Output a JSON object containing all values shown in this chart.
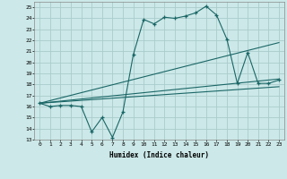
{
  "xlabel": "Humidex (Indice chaleur)",
  "bg_color": "#cce8e8",
  "grid_color": "#aacccc",
  "line_color": "#1a6666",
  "xlim": [
    -0.5,
    23.5
  ],
  "ylim": [
    13,
    25.5
  ],
  "yticks": [
    13,
    14,
    15,
    16,
    17,
    18,
    19,
    20,
    21,
    22,
    23,
    24,
    25
  ],
  "xticks": [
    0,
    1,
    2,
    3,
    4,
    5,
    6,
    7,
    8,
    9,
    10,
    11,
    12,
    13,
    14,
    15,
    16,
    17,
    18,
    19,
    20,
    21,
    22,
    23
  ],
  "line1_x": [
    0,
    1,
    2,
    3,
    4,
    5,
    6,
    7,
    8,
    9,
    10,
    11,
    12,
    13,
    14,
    15,
    16,
    17,
    18,
    19,
    20,
    21,
    22,
    23
  ],
  "line1_y": [
    16.3,
    16.0,
    16.1,
    16.1,
    16.0,
    13.7,
    15.0,
    13.2,
    15.5,
    20.7,
    23.9,
    23.5,
    24.1,
    24.0,
    24.2,
    24.5,
    25.1,
    24.3,
    22.1,
    18.1,
    20.9,
    18.1,
    18.1,
    18.4
  ],
  "line2_x": [
    0,
    23
  ],
  "line2_y": [
    16.3,
    21.8
  ],
  "line3_x": [
    0,
    23
  ],
  "line3_y": [
    16.3,
    18.5
  ],
  "line4_x": [
    0,
    23
  ],
  "line4_y": [
    16.3,
    17.8
  ]
}
